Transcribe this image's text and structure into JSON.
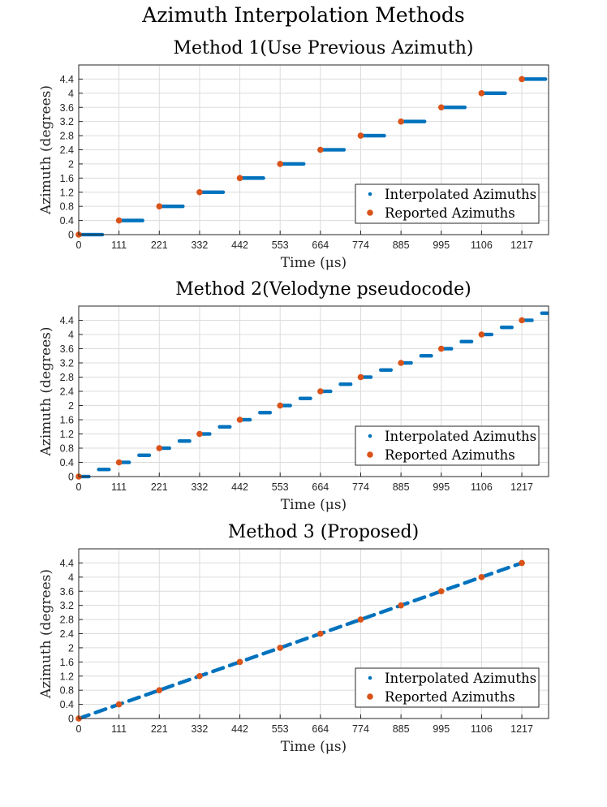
{
  "figure": {
    "title": "Azimuth Interpolation Methods"
  },
  "colors": {
    "interpolated": "#0072BD",
    "reported": "#D95319",
    "grid": "#dcdcdc",
    "axis": "#262626"
  },
  "chart_data": [
    {
      "type": "scatter",
      "title": "Method 1(Use Previous Azimuth)",
      "xlabel": "Time (μs)",
      "ylabel": "Azimuth (degrees)",
      "xlim": [
        0,
        1290
      ],
      "ylim": [
        0,
        4.8
      ],
      "xticks": [
        "0",
        "111",
        "221",
        "332",
        "442",
        "553",
        "664",
        "774",
        "885",
        "995",
        "1106",
        "1217"
      ],
      "yticks": [
        "0",
        "0.4",
        "0.8",
        "1.2",
        "1.6",
        "2",
        "2.4",
        "2.8",
        "3.2",
        "3.6",
        "4",
        "4.4"
      ],
      "grid": true,
      "legend_position": "bottom-right",
      "interpolation": "previous",
      "series": [
        {
          "name": "Interpolated Azimuths",
          "marker": "dense-dots",
          "x_start": 0,
          "x_end": 1290
        },
        {
          "name": "Reported Azimuths",
          "marker": "circle",
          "x": [
            0,
            110.6,
            221.2,
            331.8,
            442.4,
            553,
            663.6,
            774.2,
            884.8,
            995.4,
            1106,
            1216.6
          ],
          "y": [
            0,
            0.4,
            0.8,
            1.2,
            1.6,
            2.0,
            2.4,
            2.8,
            3.2,
            3.6,
            4.0,
            4.4
          ]
        }
      ]
    },
    {
      "type": "scatter",
      "title": "Method 2(Velodyne pseudocode)",
      "xlabel": "Time (μs)",
      "ylabel": "Azimuth (degrees)",
      "xlim": [
        0,
        1290
      ],
      "ylim": [
        0,
        4.8
      ],
      "xticks": [
        "0",
        "111",
        "221",
        "332",
        "442",
        "553",
        "664",
        "774",
        "885",
        "995",
        "1106",
        "1217"
      ],
      "yticks": [
        "0",
        "0.4",
        "0.8",
        "1.2",
        "1.6",
        "2",
        "2.4",
        "2.8",
        "3.2",
        "3.6",
        "4",
        "4.4"
      ],
      "grid": true,
      "legend_position": "bottom-right",
      "interpolation": "half-step",
      "series": [
        {
          "name": "Interpolated Azimuths",
          "marker": "dense-dots",
          "x_start": 0,
          "x_end": 1290
        },
        {
          "name": "Reported Azimuths",
          "marker": "circle",
          "x": [
            0,
            110.6,
            221.2,
            331.8,
            442.4,
            553,
            663.6,
            774.2,
            884.8,
            995.4,
            1106,
            1216.6
          ],
          "y": [
            0,
            0.4,
            0.8,
            1.2,
            1.6,
            2.0,
            2.4,
            2.8,
            3.2,
            3.6,
            4.0,
            4.4
          ]
        }
      ]
    },
    {
      "type": "scatter",
      "title": "Method 3 (Proposed)",
      "xlabel": "Time (μs)",
      "ylabel": "Azimuth (degrees)",
      "xlim": [
        0,
        1290
      ],
      "ylim": [
        0,
        4.8
      ],
      "xticks": [
        "0",
        "111",
        "221",
        "332",
        "442",
        "553",
        "664",
        "774",
        "885",
        "995",
        "1106",
        "1217"
      ],
      "yticks": [
        "0",
        "0.4",
        "0.8",
        "1.2",
        "1.6",
        "2",
        "2.4",
        "2.8",
        "3.2",
        "3.6",
        "4",
        "4.4"
      ],
      "grid": true,
      "legend_position": "bottom-right",
      "interpolation": "linear",
      "series": [
        {
          "name": "Interpolated Azimuths",
          "marker": "dense-dots",
          "x_start": 0,
          "x_end": 1216.6
        },
        {
          "name": "Reported Azimuths",
          "marker": "circle",
          "x": [
            0,
            110.6,
            221.2,
            331.8,
            442.4,
            553,
            663.6,
            774.2,
            884.8,
            995.4,
            1106,
            1216.6
          ],
          "y": [
            0,
            0.4,
            0.8,
            1.2,
            1.6,
            2.0,
            2.4,
            2.8,
            3.2,
            3.6,
            4.0,
            4.4
          ]
        }
      ]
    }
  ]
}
